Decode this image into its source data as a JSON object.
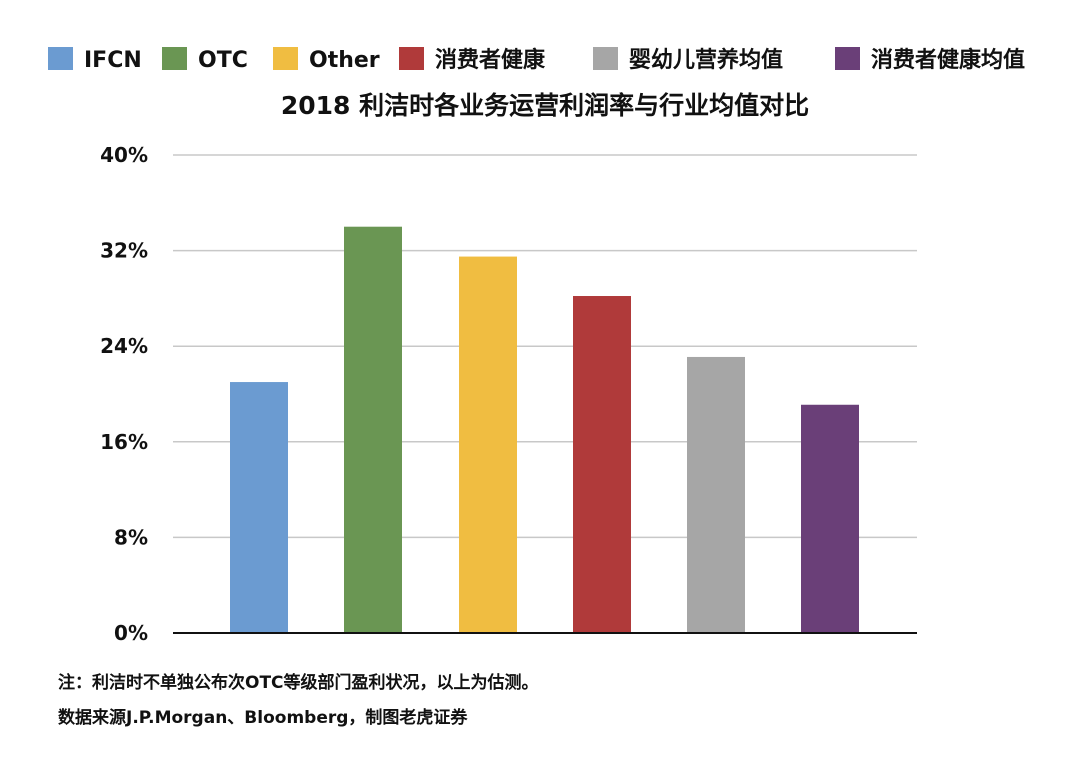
{
  "chart_data": {
    "type": "bar",
    "title": "2018 利洁时各业务运营利润率与行业均值对比",
    "categories": [
      "IFCN",
      "OTC",
      "Other",
      "消费者健康",
      "婴幼儿营养均值",
      "消费者健康均值"
    ],
    "values": [
      21,
      34,
      31.5,
      28.2,
      23.1,
      19.1
    ],
    "colors": [
      "#6b9bd1",
      "#6a9653",
      "#f0bd41",
      "#b03a3a",
      "#a6a6a6",
      "#6a3f78"
    ],
    "ylim": [
      0,
      40
    ],
    "yticks": [
      0,
      8,
      16,
      24,
      32,
      40
    ],
    "ytick_labels": [
      "0%",
      "8%",
      "16%",
      "24%",
      "32%",
      "40%"
    ],
    "grid": true,
    "legend_position": "top"
  },
  "notes": {
    "line1": "注：利洁时不单独公布次OTC等级部门盈利状况，以上为估测。",
    "line2": "数据来源J.P.Morgan、Bloomberg，制图老虎证券"
  }
}
